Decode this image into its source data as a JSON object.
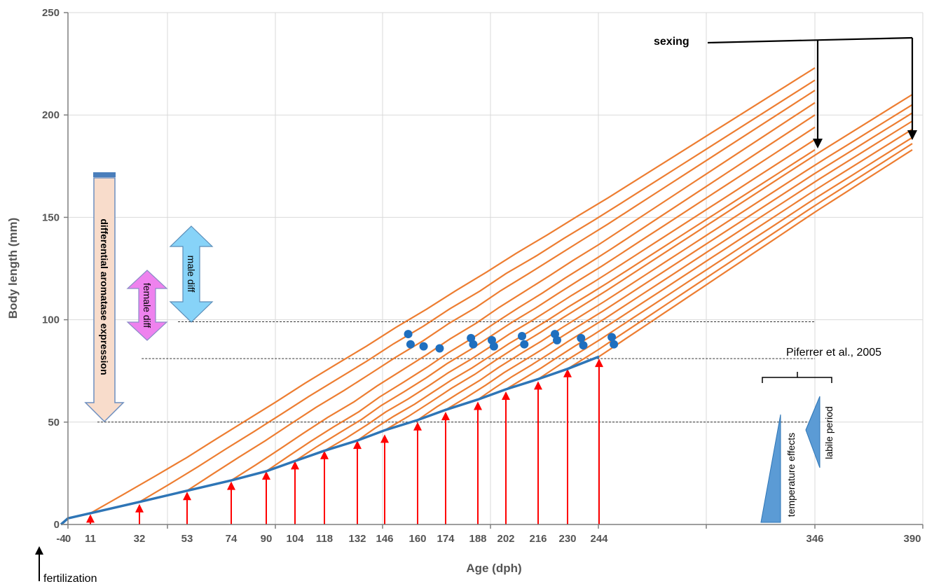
{
  "chart_data": {
    "type": "line",
    "xlabel": "Age (dph)",
    "ylabel": "Body length (mm)",
    "ylim": [
      0,
      250
    ],
    "y_ticks": [
      0,
      50,
      100,
      150,
      200,
      250
    ],
    "x_tick_labels": [
      "-4",
      "0",
      "11",
      "32",
      "53",
      "74",
      "90",
      "104",
      "118",
      "132",
      "146",
      "160",
      "174",
      "188",
      "202",
      "216",
      "230",
      "244",
      "346",
      "390"
    ],
    "grid": true,
    "colors": {
      "growth": "#ED7D31",
      "base": "#2E75B6",
      "arrows": "#FF0000",
      "points": "#1F6FBF",
      "female": "#EE82EE",
      "male": "#87D3F8",
      "aromatase": "#F8DCCB",
      "triangles": "#5B9BD5"
    },
    "base_curve": {
      "x": [
        -4,
        0,
        11,
        32,
        53,
        74,
        90,
        104,
        118,
        132,
        146,
        160,
        174,
        188,
        202,
        216,
        230,
        244
      ],
      "y": [
        0,
        3,
        5.5,
        11,
        16.5,
        21.5,
        26,
        31,
        36,
        41,
        46,
        51,
        56,
        61,
        66,
        71,
        76,
        82
      ]
    },
    "growth_series_start_x": [
      11,
      32,
      53,
      74,
      90,
      104,
      118,
      132,
      146,
      160,
      174,
      188,
      202,
      216,
      230,
      244
    ],
    "growth_series_end_x": [
      346,
      346,
      346,
      346,
      346,
      346,
      346,
      346,
      390,
      390,
      390,
      390,
      390,
      390,
      390,
      390
    ],
    "growth_series_end_y": [
      223,
      217,
      212,
      206,
      200,
      194,
      188,
      183,
      210,
      205,
      201,
      197,
      193,
      189,
      186,
      183
    ],
    "sampling_arrows": {
      "x": [
        11,
        32,
        53,
        74,
        90,
        104,
        118,
        132,
        146,
        160,
        174,
        188,
        202,
        216,
        230,
        244
      ],
      "y": [
        5,
        10,
        16,
        21,
        26,
        31,
        36,
        41,
        44,
        50,
        55,
        60,
        65,
        70,
        76,
        81
      ]
    },
    "points": {
      "x": [
        156,
        157,
        163,
        171,
        185,
        186,
        195,
        196,
        209,
        210,
        224,
        225,
        236,
        237,
        250,
        251
      ],
      "y": [
        93,
        88,
        87,
        86,
        91,
        88,
        90,
        87,
        92,
        88,
        93,
        90,
        91,
        87.5,
        91.5,
        88
      ]
    },
    "thresholds": [
      {
        "y": 50,
        "x_from": 14,
        "x_to": 346
      },
      {
        "y": 81,
        "x_from": 33,
        "x_to": 346
      },
      {
        "y": 99,
        "x_from": 49,
        "x_to": 346
      }
    ],
    "annotations": {
      "sexing": "sexing",
      "fertilization": "fertilization",
      "aromatase": "differential aromatase expression",
      "female": "female diff",
      "male": "male diff",
      "reference": "Piferrer et al., 2005",
      "temperature": "temperature effects",
      "labile": "labile period"
    }
  }
}
